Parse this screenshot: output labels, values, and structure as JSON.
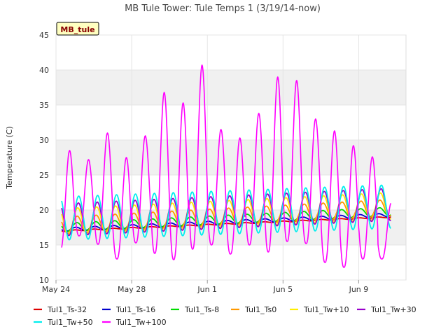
{
  "chart_data": {
    "type": "line",
    "title": "MB Tule Tower: Tule Temps 1 (3/19/14-now)",
    "site_label": "MB_tule",
    "ylabel": "Temperature (C)",
    "xlabel": "",
    "ylim": [
      10,
      45
    ],
    "xlim_days": [
      0,
      18.5
    ],
    "y_ticks": [
      10,
      15,
      20,
      25,
      30,
      35,
      40,
      45
    ],
    "x_ticks": [
      {
        "label": "May 24",
        "day": 0
      },
      {
        "label": "May 28",
        "day": 4
      },
      {
        "label": "Jun 1",
        "day": 8
      },
      {
        "label": "Jun 5",
        "day": 12
      },
      {
        "label": "Jun 9",
        "day": 16
      }
    ],
    "x_start_day": 0.3,
    "x_end_day": 17.7,
    "series": [
      {
        "name": "Tul1_Ts-32",
        "color": "#dd0000",
        "base_start": 17.0,
        "base_end": 19.0,
        "amp": 0.08,
        "phase": 0.0
      },
      {
        "name": "Tul1_Ts-16",
        "color": "#0000cc",
        "base_start": 17.2,
        "base_end": 19.3,
        "amp": 0.25,
        "phase": 0.05
      },
      {
        "name": "Tul1_Ts-8",
        "color": "#00dd00",
        "base_start": 17.5,
        "base_end": 19.8,
        "amp": 0.6,
        "phase": 0.1
      },
      {
        "name": "Tul1_Ts0",
        "color": "#ff9900",
        "base_start": 17.8,
        "base_end": 20.3,
        "amp": 1.2,
        "phase": 0.12
      },
      {
        "name": "Tul1_Tw+10",
        "color": "#ffee00",
        "base_start": 18.3,
        "base_end": 20.6,
        "amp": 1.9,
        "phase": 0.15
      },
      {
        "name": "Tul1_Tw+30",
        "color": "#9900cc",
        "base_start": 18.6,
        "base_end": 20.8,
        "amp": 2.3,
        "phase": 0.18
      },
      {
        "name": "Tul1_Tw+50",
        "color": "#00eeee",
        "base_start": 18.8,
        "base_end": 20.5,
        "amp": 3.1,
        "phase": 0.2
      },
      {
        "name": "Tul1_Tw+100",
        "color": "#ff00ff",
        "base_start": 20.0,
        "base_end": 19.5,
        "amp": 0.0,
        "phase": 0.22,
        "daily_max": [
          28.5,
          27.2,
          31.0,
          27.5,
          30.6,
          36.8,
          35.3,
          40.7,
          31.5,
          30.3,
          33.8,
          39.0,
          38.5,
          33.0,
          31.3,
          29.2,
          27.6,
          21.0
        ],
        "daily_min": [
          14.2,
          16.3,
          15.1,
          13.0,
          15.3,
          13.8,
          12.9,
          14.4,
          15.0,
          13.7,
          15.0,
          14.0,
          15.5,
          15.2,
          12.5,
          11.8,
          13.0,
          13.0
        ]
      }
    ]
  }
}
